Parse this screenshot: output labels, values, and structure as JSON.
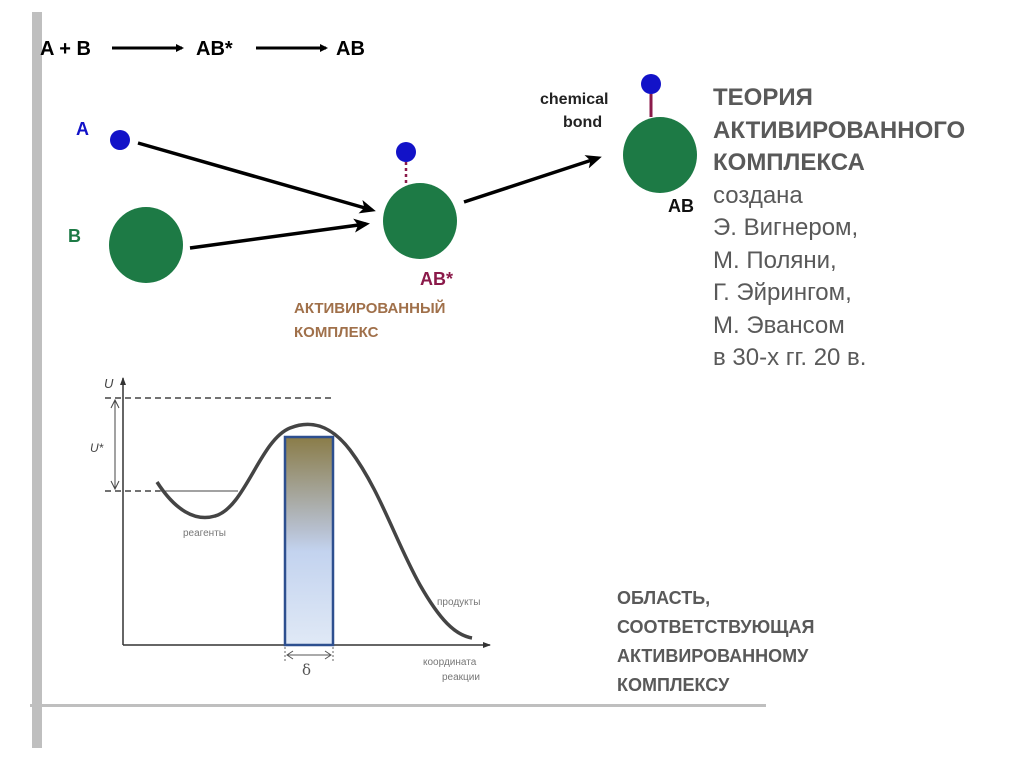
{
  "reaction": {
    "reactants": "A + B",
    "intermediate": "AB*",
    "product": "AB"
  },
  "diagram": {
    "label_a": "A",
    "label_b": "B",
    "label_ab_star": "AB*",
    "label_ab": "AB",
    "bond_label_1": "chemical",
    "bond_label_2": "bond",
    "complex_label_1": "АКТИВИРОВАННЫЙ",
    "complex_label_2": "КОМПЛЕКС",
    "colors": {
      "atom_a": "#1212c8",
      "atom_b": "#1d7a45",
      "bond": "#8b1a4a",
      "complex_label": "#a0704a"
    }
  },
  "energy_plot": {
    "y_label": "U",
    "barrier_label": "U*",
    "reactants_label": "реагенты",
    "products_label": "продукты",
    "x_label_1": "координата",
    "x_label_2": "реакции",
    "width_label": "δ"
  },
  "theory": {
    "title_lines": [
      "ТЕОРИЯ",
      "АКТИВИРОВАННОГО",
      "КОМПЛЕКСА"
    ],
    "body_lines": [
      "создана",
      "Э. Вигнером,",
      "М. Поляни,",
      "Г. Эйрингом,",
      "М. Эвансом",
      "в 30-х гг. 20 в."
    ]
  },
  "region_caption": [
    "ОБЛАСТЬ,",
    "СООТВЕТСТВУЮЩАЯ",
    "АКТИВИРОВАННОМУ",
    "КОМПЛЕКСУ"
  ]
}
